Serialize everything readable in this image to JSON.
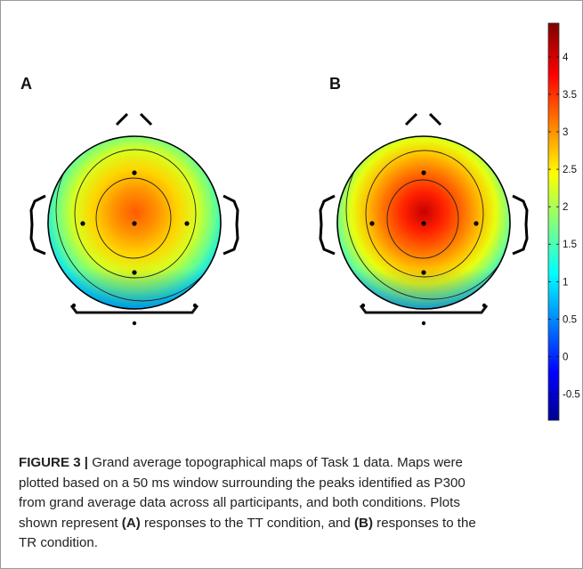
{
  "panels": [
    {
      "label": "A",
      "peak_value": 3.0
    },
    {
      "label": "B",
      "peak_value": 4.0
    }
  ],
  "colorbar": {
    "ticks": [
      "4",
      "3.5",
      "3",
      "2.5",
      "2",
      "1.5",
      "1",
      "0.5",
      "0",
      "-0.5"
    ],
    "colormap": "jet",
    "colors": [
      "#800000",
      "#ff0000",
      "#ffff00",
      "#00ffff",
      "#0000ff",
      "#00008f"
    ]
  },
  "caption": {
    "figure_label": "FIGURE 3 |",
    "l1": " Grand average topographical maps of Task 1 data. Maps were",
    "l2": "plotted based on a 50 ms window surrounding the peaks identified as P300",
    "l3": "from grand average data across all participants, and both conditions. Plots",
    "l4a": "shown represent ",
    "ref_a": "(A)",
    "l4b": " responses to the TT condition, and ",
    "ref_b": "(B)",
    "l4c": " responses to the",
    "l5": "TR condition."
  }
}
